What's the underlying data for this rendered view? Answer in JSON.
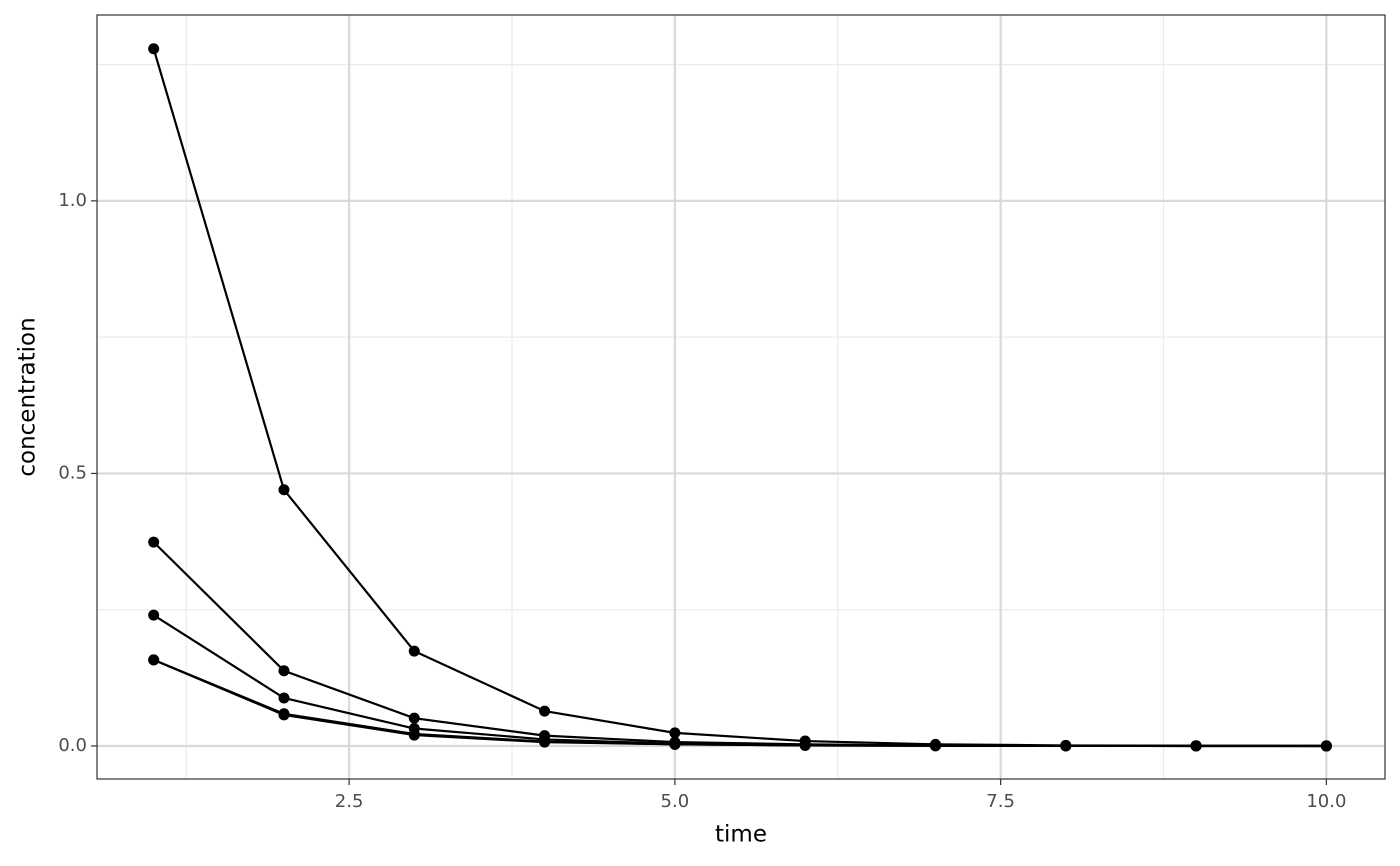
{
  "chart_data": {
    "type": "line",
    "x_label": "time",
    "y_label": "concentration",
    "x": [
      1,
      2,
      3,
      4,
      5,
      6,
      7,
      8,
      9,
      10
    ],
    "series": [
      {
        "color": "#000000",
        "values": [
          1.279,
          0.47,
          0.174,
          0.064,
          0.024,
          0.009,
          0.003,
          0.001,
          0.0005,
          0.0002
        ]
      },
      {
        "color": "#000000",
        "values": [
          0.374,
          0.138,
          0.051,
          0.019,
          0.007,
          0.003,
          0.001,
          0.0004,
          0.0001,
          0.0001
        ]
      },
      {
        "color": "#000000",
        "values": [
          0.24,
          0.088,
          0.032,
          0.012,
          0.004,
          0.002,
          0.001,
          0.0002,
          0.0001,
          0
        ]
      },
      {
        "color": "#000000",
        "values": [
          0.158,
          0.059,
          0.022,
          0.008,
          0.003,
          0.001,
          0.0004,
          0.0001,
          0,
          0
        ]
      },
      {
        "color": "#000000",
        "values": [
          0.158,
          0.057,
          0.02,
          0.007,
          0.003,
          0.001,
          0.0003,
          0.0001,
          0,
          0
        ]
      }
    ],
    "xlim": [
      0.565,
      10.45
    ],
    "ylim": [
      -0.0606,
      1.341
    ],
    "xticks": [
      {
        "value": 2.5,
        "label": "2.5"
      },
      {
        "value": 5,
        "label": "5.0"
      },
      {
        "value": 7.5,
        "label": "7.5"
      },
      {
        "value": 10,
        "label": "10.0"
      }
    ],
    "yticks": [
      {
        "value": 0,
        "label": "0.0"
      },
      {
        "value": 0.5,
        "label": "0.5"
      },
      {
        "value": 1,
        "label": "1.0"
      }
    ],
    "x_minor_ticks": [
      1.25,
      3.75,
      6.25,
      8.75
    ],
    "y_minor_ticks": [
      0.25,
      0.75,
      1.25
    ],
    "grid": true,
    "markers": true
  }
}
